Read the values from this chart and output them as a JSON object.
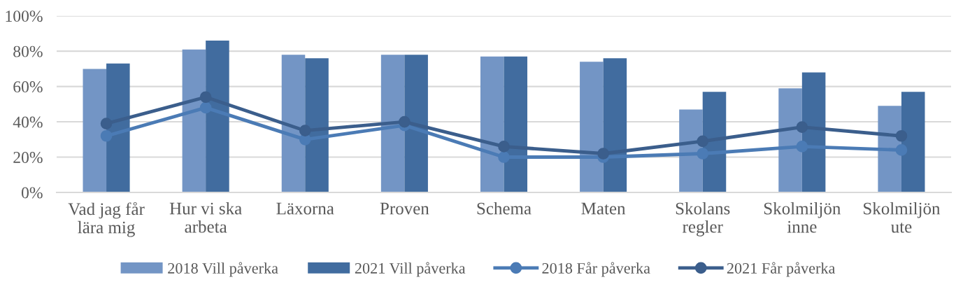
{
  "chart_data": {
    "type": "bar",
    "categories": [
      "Vad jag får\nlära mig",
      "Hur vi ska\narbeta",
      "Läxorna",
      "Proven",
      "Schema",
      "Maten",
      "Skolans\nregler",
      "Skolmiljön\ninne",
      "Skolmiljön\nute"
    ],
    "ylim": [
      0,
      100
    ],
    "yticks": [
      {
        "value": 0,
        "label": "0%"
      },
      {
        "value": 20,
        "label": "20%"
      },
      {
        "value": 40,
        "label": "40%"
      },
      {
        "value": 60,
        "label": "60%"
      },
      {
        "value": 80,
        "label": "80%"
      },
      {
        "value": 100,
        "label": "100%"
      }
    ],
    "grid": "y",
    "legend": "bottom",
    "series": [
      {
        "name": "2018 Vill påverka",
        "color": "#7395c5",
        "values": [
          70,
          81,
          78,
          78,
          77,
          74,
          47,
          59,
          49
        ]
      },
      {
        "name": "2021 Vill påverka",
        "color": "#416c9f",
        "values": [
          73,
          86,
          76,
          78,
          77,
          76,
          57,
          68,
          57
        ]
      },
      {
        "name": "2018 Får påverka",
        "type": "line",
        "marker": "circle",
        "line_style": "solid",
        "color": "#4b7bb5",
        "values": [
          32,
          48,
          30,
          38,
          20,
          20,
          22,
          26,
          24
        ]
      },
      {
        "name": "2021 Får påverka",
        "type": "line",
        "marker": "circle",
        "line_style": "solid",
        "color": "#3b5e8c",
        "values": [
          39,
          54,
          35,
          40,
          26,
          22,
          29,
          37,
          32
        ]
      }
    ]
  }
}
